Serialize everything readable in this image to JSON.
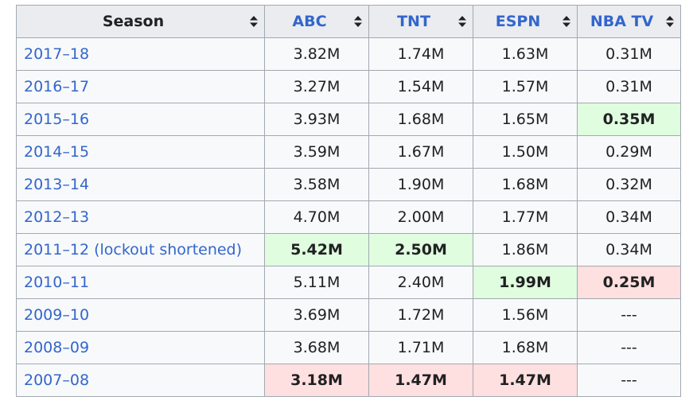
{
  "columns": [
    "Season",
    "ABC",
    "TNT",
    "ESPN",
    "NBA TV"
  ],
  "rows": [
    {
      "season": "2017–18",
      "cells": [
        {
          "v": "3.82M",
          "s": ""
        },
        {
          "v": "1.74M",
          "s": ""
        },
        {
          "v": "1.63M",
          "s": ""
        },
        {
          "v": "0.31M",
          "s": ""
        }
      ]
    },
    {
      "season": "2016–17",
      "cells": [
        {
          "v": "3.27M",
          "s": ""
        },
        {
          "v": "1.54M",
          "s": ""
        },
        {
          "v": "1.57M",
          "s": ""
        },
        {
          "v": "0.31M",
          "s": ""
        }
      ]
    },
    {
      "season": "2015–16",
      "cells": [
        {
          "v": "3.93M",
          "s": ""
        },
        {
          "v": "1.68M",
          "s": ""
        },
        {
          "v": "1.65M",
          "s": ""
        },
        {
          "v": "0.35M",
          "s": "best"
        }
      ]
    },
    {
      "season": "2014–15",
      "cells": [
        {
          "v": "3.59M",
          "s": ""
        },
        {
          "v": "1.67M",
          "s": ""
        },
        {
          "v": "1.50M",
          "s": ""
        },
        {
          "v": "0.29M",
          "s": ""
        }
      ]
    },
    {
      "season": "2013–14",
      "cells": [
        {
          "v": "3.58M",
          "s": ""
        },
        {
          "v": "1.90M",
          "s": ""
        },
        {
          "v": "1.68M",
          "s": ""
        },
        {
          "v": "0.32M",
          "s": ""
        }
      ]
    },
    {
      "season": "2012–13",
      "cells": [
        {
          "v": "4.70M",
          "s": ""
        },
        {
          "v": "2.00M",
          "s": ""
        },
        {
          "v": "1.77M",
          "s": ""
        },
        {
          "v": "0.34M",
          "s": ""
        }
      ]
    },
    {
      "season": "2011–12 (lockout shortened)",
      "cells": [
        {
          "v": "5.42M",
          "s": "best"
        },
        {
          "v": "2.50M",
          "s": "best"
        },
        {
          "v": "1.86M",
          "s": ""
        },
        {
          "v": "0.34M",
          "s": ""
        }
      ]
    },
    {
      "season": "2010–11",
      "cells": [
        {
          "v": "5.11M",
          "s": ""
        },
        {
          "v": "2.40M",
          "s": ""
        },
        {
          "v": "1.99M",
          "s": "best"
        },
        {
          "v": "0.25M",
          "s": "worst"
        }
      ]
    },
    {
      "season": "2009–10",
      "cells": [
        {
          "v": "3.69M",
          "s": ""
        },
        {
          "v": "1.72M",
          "s": ""
        },
        {
          "v": "1.56M",
          "s": ""
        },
        {
          "v": "---",
          "s": ""
        }
      ]
    },
    {
      "season": "2008–09",
      "cells": [
        {
          "v": "3.68M",
          "s": ""
        },
        {
          "v": "1.71M",
          "s": ""
        },
        {
          "v": "1.68M",
          "s": ""
        },
        {
          "v": "---",
          "s": ""
        }
      ]
    },
    {
      "season": "2007–08",
      "cells": [
        {
          "v": "3.18M",
          "s": "worst"
        },
        {
          "v": "1.47M",
          "s": "worst"
        },
        {
          "v": "1.47M",
          "s": "worst"
        },
        {
          "v": "---",
          "s": ""
        }
      ]
    }
  ]
}
